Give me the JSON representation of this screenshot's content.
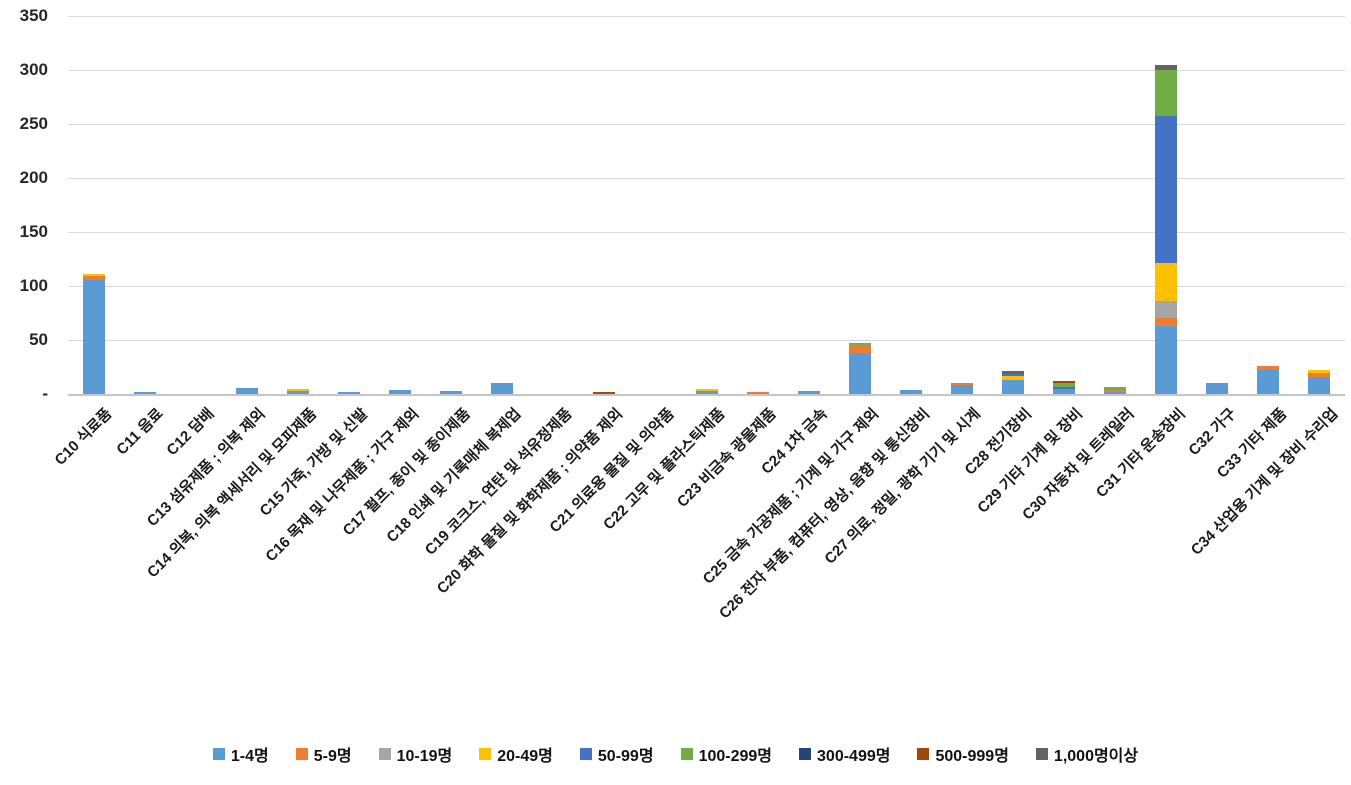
{
  "chart_data": {
    "type": "bar",
    "stacked": true,
    "title": "",
    "xlabel": "",
    "ylabel": "",
    "ylim": [
      0,
      350
    ],
    "ytick_step": 50,
    "ytick_labels": [
      "-",
      "50",
      "100",
      "150",
      "200",
      "250",
      "300",
      "350"
    ],
    "grid": true,
    "legend_position": "bottom",
    "categories": [
      "C10 식료품",
      "C11 음료",
      "C12 담배",
      "C13 섬유제품 ; 의복 제외",
      "C14 의복, 의복 액세서리 및 모피제품",
      "C15 가죽, 가방 및 신발",
      "C16 목재 및 나무제품 ; 가구 제외",
      "C17 펄프, 종이 및 종이제품",
      "C18 인쇄 및 기록매체 복제업",
      "C19 코크스, 연탄 및 석유정제품",
      "C20 화학 물질 및 화학제품 ; 의약품 제외",
      "C21 의료용 물질 및 의약품",
      "C22 고무 및 플라스틱제품",
      "C23 비금속 광물제품",
      "C24 1차 금속",
      "C25 금속 가공제품 ; 기계 및 가구 제외",
      "C26 전자 부품, 컴퓨터, 영상, 음향 및 통신장비",
      "C27 의료, 정밀, 광학 기기 및 시계",
      "C28 전기장비",
      "C29 기타 기계 및 장비",
      "C30 자동차 및 트레일러",
      "C31 기타 운송장비",
      "C32 가구",
      "C33 기타 제품",
      "C34 산업용 기계 및 장비 수리업"
    ],
    "series": [
      {
        "name": "1-4명",
        "color": "#5B9BD5",
        "values": [
          106,
          2,
          0,
          6,
          3,
          2,
          4,
          3,
          10,
          0,
          0,
          0,
          3,
          1,
          3,
          38,
          4,
          8,
          13,
          5,
          2,
          63,
          10,
          22,
          16
        ]
      },
      {
        "name": "5-9명",
        "color": "#ED7D31",
        "values": [
          4,
          0,
          0,
          0,
          0,
          0,
          0,
          0,
          0,
          0,
          0,
          0,
          0,
          1,
          0,
          7,
          0,
          2,
          0,
          0,
          2,
          7,
          0,
          4,
          4
        ]
      },
      {
        "name": "10-19명",
        "color": "#A5A5A5",
        "values": [
          0,
          0,
          0,
          0,
          0,
          0,
          0,
          0,
          0,
          0,
          0,
          0,
          0,
          0,
          0,
          0,
          0,
          0,
          0,
          0,
          0,
          16,
          0,
          0,
          0
        ]
      },
      {
        "name": "20-49명",
        "color": "#FFC000",
        "values": [
          2,
          0,
          0,
          0,
          2,
          0,
          0,
          0,
          0,
          0,
          0,
          0,
          2,
          0,
          0,
          0,
          0,
          0,
          4,
          0,
          0,
          35,
          0,
          0,
          3
        ]
      },
      {
        "name": "50-99명",
        "color": "#4472C4",
        "values": [
          0,
          0,
          0,
          0,
          0,
          0,
          0,
          0,
          0,
          0,
          0,
          0,
          0,
          0,
          0,
          0,
          0,
          0,
          2,
          2,
          0,
          136,
          0,
          0,
          0
        ]
      },
      {
        "name": "100-299명",
        "color": "#70AD47",
        "values": [
          0,
          0,
          0,
          0,
          0,
          0,
          0,
          0,
          0,
          0,
          0,
          0,
          0,
          0,
          0,
          2,
          0,
          0,
          0,
          4,
          3,
          43,
          0,
          0,
          0
        ]
      },
      {
        "name": "300-499명",
        "color": "#264478",
        "values": [
          0,
          0,
          0,
          0,
          0,
          0,
          0,
          0,
          0,
          0,
          0,
          0,
          0,
          0,
          0,
          0,
          0,
          0,
          0,
          0,
          0,
          0,
          0,
          0,
          0
        ]
      },
      {
        "name": "500-999명",
        "color": "#9E480E",
        "values": [
          0,
          0,
          0,
          0,
          0,
          0,
          0,
          0,
          0,
          0,
          2,
          0,
          0,
          0,
          0,
          0,
          0,
          0,
          0,
          2,
          0,
          0,
          0,
          0,
          0
        ]
      },
      {
        "name": "1,000명이상",
        "color": "#636363",
        "values": [
          0,
          0,
          0,
          0,
          0,
          0,
          0,
          0,
          0,
          0,
          0,
          0,
          0,
          0,
          0,
          0,
          0,
          0,
          3,
          0,
          0,
          5,
          0,
          0,
          0
        ]
      }
    ]
  }
}
